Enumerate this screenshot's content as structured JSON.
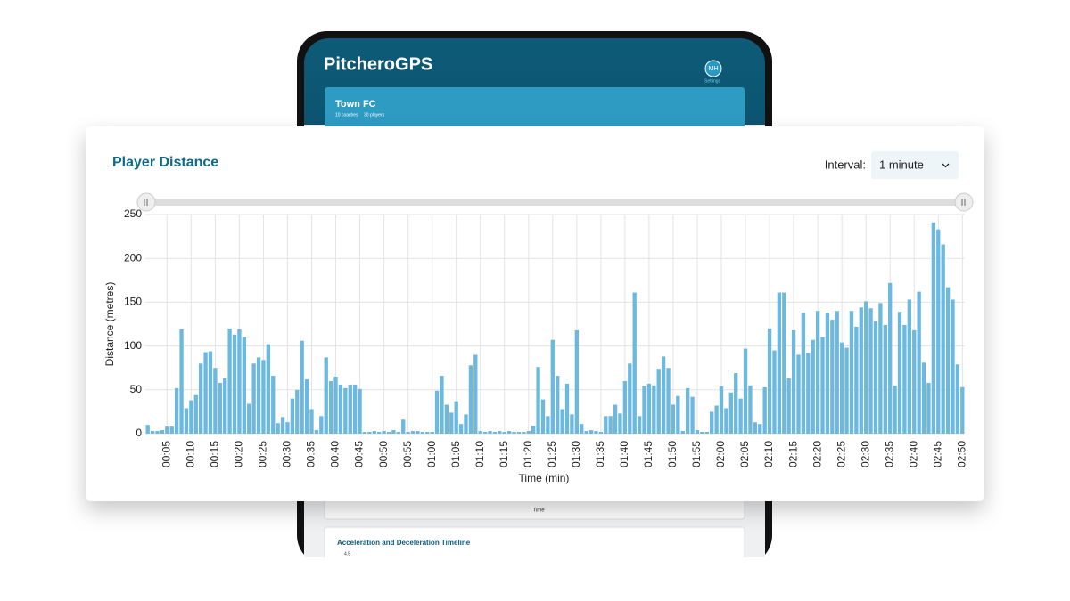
{
  "app": {
    "logo": "PitcheroGPS",
    "avatar": "MH",
    "settings": "Settings",
    "team": "Town FC",
    "coaches": "10 coaches",
    "players": "30 players",
    "lower_axis_label": "Time",
    "lower_chart_title": "Acceleration and Deceleration Timeline",
    "lower_chart_tick": "4.5",
    "interval_label": "Interval:",
    "interval_value": "1 minute"
  },
  "chart_data": {
    "type": "bar",
    "title": "Player Distance",
    "x_label": "Time (min)",
    "y_label": "Distance (metres)",
    "color": "#6cb8de",
    "grid": true,
    "categories": [
      null,
      null,
      null,
      null,
      "00:05",
      null,
      null,
      null,
      null,
      "00:10",
      null,
      null,
      null,
      null,
      "00:15",
      null,
      null,
      null,
      null,
      "00:20",
      null,
      null,
      null,
      null,
      "00:25",
      null,
      null,
      null,
      null,
      "00:30",
      null,
      null,
      null,
      null,
      "00:35",
      null,
      null,
      null,
      null,
      "00:40",
      null,
      null,
      null,
      null,
      "00:45",
      null,
      null,
      null,
      null,
      "00:50",
      null,
      null,
      null,
      null,
      "00:55",
      null,
      null,
      null,
      null,
      "01:00",
      null,
      null,
      null,
      null,
      "01:05",
      null,
      null,
      null,
      null,
      "01:10",
      null,
      null,
      null,
      null,
      "01:15",
      null,
      null,
      null,
      null,
      "01:20",
      null,
      null,
      null,
      null,
      "01:25",
      null,
      null,
      null,
      null,
      "01:30",
      null,
      null,
      null,
      null,
      "01:35",
      null,
      null,
      null,
      null,
      "01:40",
      null,
      null,
      null,
      null,
      "01:45",
      null,
      null,
      null,
      null,
      "01:50",
      null,
      null,
      null,
      null,
      "01:55",
      null,
      null,
      null,
      null,
      "02:00",
      null,
      null,
      null,
      null,
      "02:05",
      null,
      null,
      null,
      null,
      "02:10",
      null,
      null,
      null,
      null,
      "02:15",
      null,
      null,
      null,
      null,
      "02:20",
      null,
      null,
      null,
      null,
      "02:25",
      null,
      null,
      null,
      null,
      "02:30",
      null,
      null,
      null,
      null,
      "02:35",
      null,
      null,
      null,
      null,
      "02:40",
      null,
      null,
      null,
      null,
      "02:45",
      null,
      null,
      null,
      null,
      "02:50"
    ],
    "values": [
      10,
      3,
      3,
      4,
      8,
      8,
      52,
      119,
      29,
      38,
      44,
      80,
      93,
      94,
      75,
      58,
      63,
      120,
      113,
      119,
      110,
      34,
      80,
      87,
      84,
      102,
      66,
      12,
      19,
      13,
      40,
      50,
      106,
      62,
      28,
      4,
      20,
      87,
      60,
      65,
      56,
      52,
      56,
      56,
      51,
      2,
      2,
      3,
      2,
      3,
      2,
      4,
      2,
      16,
      2,
      3,
      3,
      2,
      2,
      2,
      49,
      66,
      33,
      24,
      37,
      11,
      22,
      78,
      90,
      3,
      2,
      3,
      2,
      3,
      2,
      3,
      2,
      2,
      2,
      3,
      9,
      76,
      39,
      20,
      107,
      66,
      28,
      57,
      22,
      118,
      11,
      3,
      4,
      3,
      2,
      20,
      20,
      33,
      23,
      60,
      80,
      161,
      20,
      54,
      57,
      55,
      74,
      88,
      75,
      33,
      43,
      3,
      52,
      42,
      4,
      2,
      2,
      25,
      32,
      54,
      29,
      47,
      69,
      40,
      97,
      55,
      13,
      11,
      53,
      120,
      95,
      161,
      161,
      63,
      118,
      90,
      138,
      92,
      107,
      140,
      110,
      138,
      130,
      140,
      104,
      98,
      140,
      122,
      144,
      151,
      143,
      128,
      149,
      124,
      172,
      55,
      139,
      124,
      153,
      118,
      162,
      81,
      58,
      241,
      233,
      216,
      167,
      153,
      79,
      53
    ],
    "ylim": [
      0,
      250
    ],
    "yticks": [
      0,
      50,
      100,
      150,
      200,
      250
    ]
  }
}
